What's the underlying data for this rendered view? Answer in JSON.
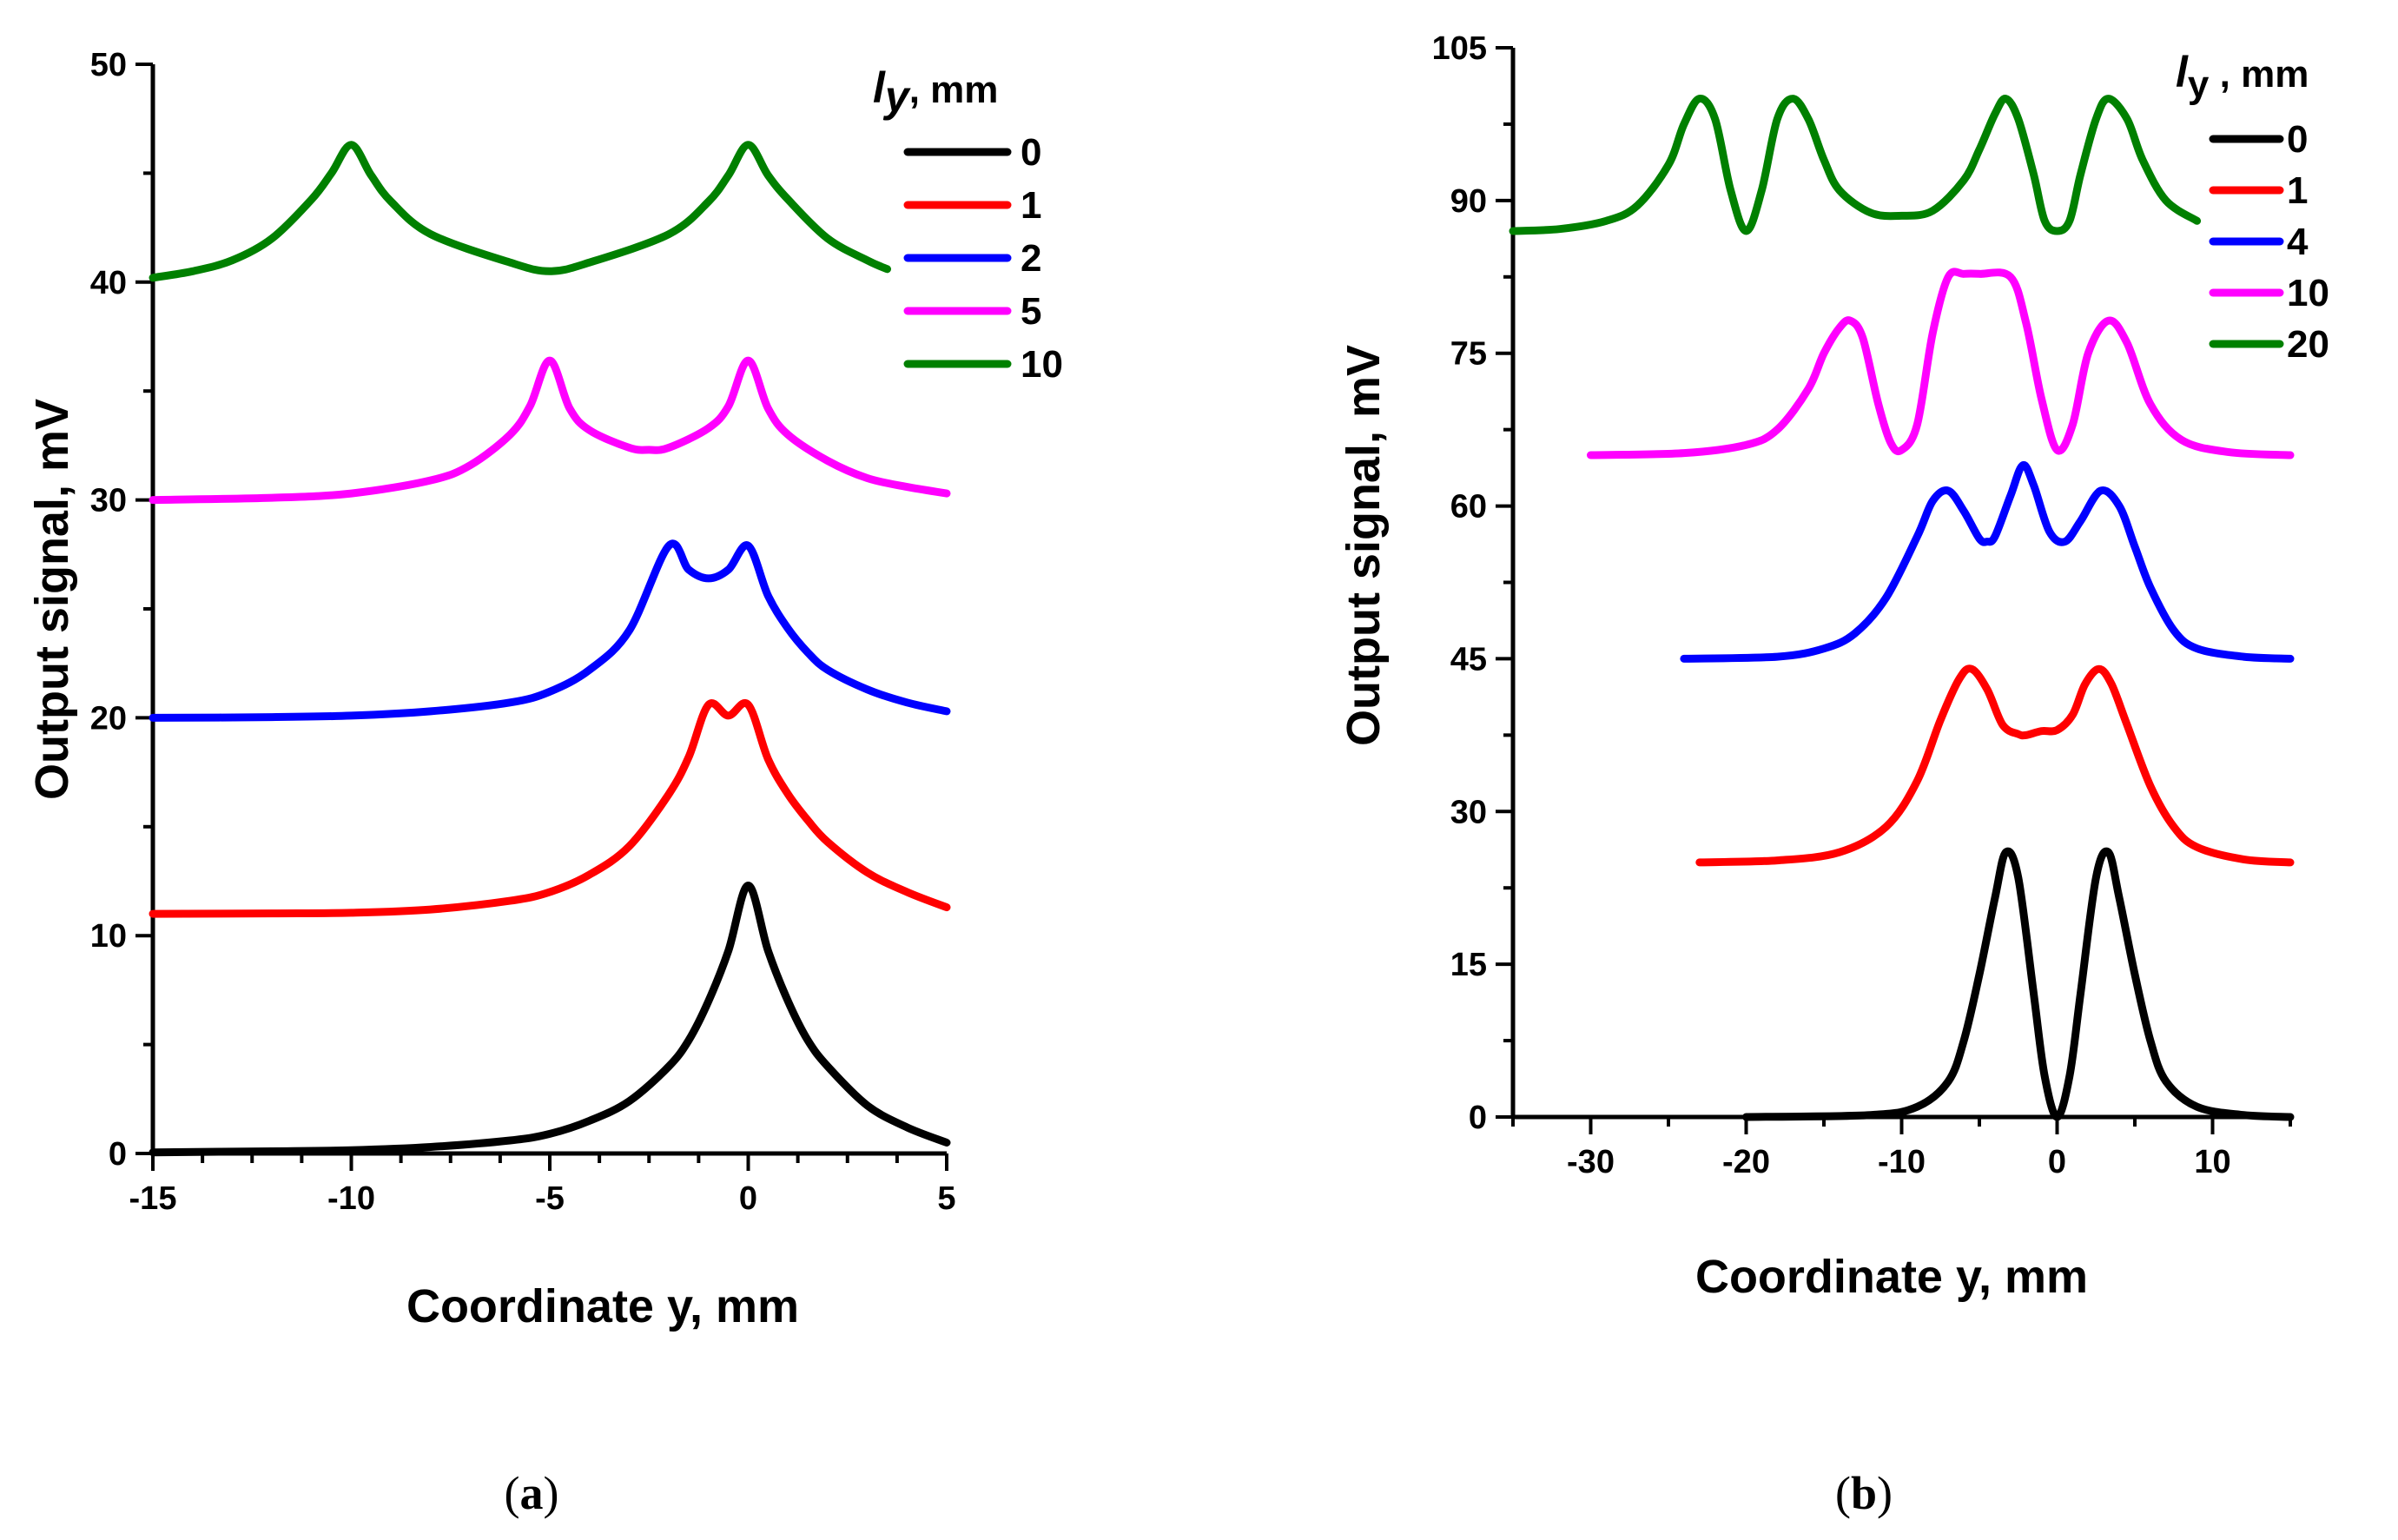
{
  "chart_data": [
    {
      "type": "line",
      "panel": "a",
      "panel_label_open": "(",
      "panel_label_letter": "a",
      "panel_label_close": ")",
      "xlabel": "Coordinate y, mm",
      "ylabel": "Output signal, mV",
      "xlim": [
        -15,
        5
      ],
      "ylim": [
        0,
        50
      ],
      "xticks": [
        -15,
        -10,
        -5,
        0,
        5
      ],
      "yticks": [
        0,
        10,
        20,
        30,
        40,
        50
      ],
      "legend_title_symbol": "l",
      "legend_title_sub": "y",
      "legend_title_unit": ", mm",
      "series": [
        {
          "name": "0",
          "color": "#000000",
          "x": [
            -15,
            -12,
            -10,
            -8,
            -6,
            -5,
            -4,
            -3,
            -2,
            -1.5,
            -1,
            -0.5,
            0,
            0.5,
            1,
            1.5,
            2,
            3,
            4,
            5
          ],
          "y": [
            0.05,
            0.1,
            0.15,
            0.3,
            0.6,
            0.9,
            1.5,
            2.4,
            4.0,
            5.2,
            7.0,
            9.3,
            12.3,
            9.3,
            7.0,
            5.2,
            4.0,
            2.2,
            1.2,
            0.5
          ]
        },
        {
          "name": "1",
          "color": "#ff0000",
          "x": [
            -15,
            -12,
            -10,
            -8,
            -6,
            -5,
            -4,
            -3,
            -2,
            -1.5,
            -1,
            -0.5,
            0,
            0.5,
            1,
            1.5,
            2,
            3,
            4,
            5
          ],
          "y": [
            11.0,
            11.02,
            11.05,
            11.2,
            11.6,
            12.0,
            12.8,
            14.1,
            16.5,
            18.2,
            20.6,
            20.1,
            20.6,
            18.1,
            16.5,
            15.3,
            14.3,
            12.9,
            12.0,
            11.3
          ]
        },
        {
          "name": "2",
          "color": "#0000ff",
          "x": [
            -15,
            -12,
            -10,
            -8,
            -6,
            -5,
            -4,
            -3,
            -2,
            -1.5,
            -1,
            -0.5,
            0,
            0.5,
            1,
            1.5,
            2,
            3,
            4,
            5
          ],
          "y": [
            20.0,
            20.03,
            20.1,
            20.3,
            20.7,
            21.2,
            22.2,
            24.0,
            27.9,
            26.8,
            26.4,
            26.8,
            27.9,
            25.6,
            24.1,
            23.0,
            22.2,
            21.3,
            20.7,
            20.3
          ]
        },
        {
          "name": "5",
          "color": "#ff00ff",
          "x": [
            -15,
            -12,
            -10,
            -8,
            -7,
            -6,
            -5.5,
            -5,
            -4.5,
            -4,
            -3,
            -2.5,
            -2,
            -1,
            -0.5,
            0,
            0.5,
            1,
            2,
            3,
            4,
            5
          ],
          "y": [
            30.0,
            30.1,
            30.3,
            30.9,
            31.6,
            33.0,
            34.3,
            36.4,
            34.2,
            33.2,
            32.4,
            32.3,
            32.4,
            33.3,
            34.3,
            36.4,
            34.2,
            33.0,
            31.8,
            31.0,
            30.6,
            30.3
          ]
        },
        {
          "name": "10",
          "color": "#008000",
          "x": [
            -15,
            -14,
            -13,
            -12,
            -11,
            -10.5,
            -10,
            -9.5,
            -9,
            -8,
            -6,
            -5,
            -4,
            -2,
            -1,
            -0.5,
            0,
            0.5,
            1,
            2,
            3,
            3.5
          ],
          "y": [
            40.2,
            40.5,
            41.0,
            42.0,
            43.8,
            45.0,
            46.3,
            44.9,
            43.7,
            42.2,
            40.9,
            40.5,
            40.9,
            42.2,
            43.7,
            44.9,
            46.3,
            44.9,
            43.8,
            42.0,
            41.0,
            40.6
          ]
        }
      ]
    },
    {
      "type": "line",
      "panel": "b",
      "panel_label_open": "(",
      "panel_label_letter": "b",
      "panel_label_close": ")",
      "xlabel": "Coordinate y, mm",
      "ylabel": "Output signal, mV",
      "xlim": [
        -35,
        15
      ],
      "ylim": [
        0,
        105
      ],
      "xticks": [
        -30,
        -20,
        -10,
        0,
        10
      ],
      "yticks": [
        0,
        15,
        30,
        45,
        60,
        75,
        90,
        105
      ],
      "legend_title_symbol": "l",
      "legend_title_sub": "y",
      "legend_title_unit": " , mm",
      "series": [
        {
          "name": "0",
          "color": "#000000",
          "x": [
            -20,
            -12,
            -9,
            -7,
            -6,
            -5,
            -4,
            -3.3,
            -2.5,
            -1.5,
            -0.8,
            0,
            0.8,
            1.5,
            2.5,
            3.3,
            4,
            5,
            6,
            7,
            9,
            12,
            15
          ],
          "y": [
            0,
            0.2,
            1.0,
            3.5,
            7.5,
            14.0,
            21.5,
            26.0,
            23.5,
            12.0,
            4.0,
            0,
            4.0,
            12.0,
            23.5,
            26.0,
            21.5,
            14.0,
            7.5,
            3.5,
            1.0,
            0.2,
            0
          ]
        },
        {
          "name": "1",
          "color": "#ff0000",
          "x": [
            -23,
            -18,
            -14,
            -11,
            -9,
            -7.5,
            -6.3,
            -5.5,
            -4.5,
            -3.5,
            -2.5,
            -2,
            -1,
            0,
            1,
            1.8,
            2.7,
            3.5,
            4.5,
            6,
            7.5,
            9,
            12,
            15
          ],
          "y": [
            25.0,
            25.2,
            26.0,
            28.5,
            33.0,
            39.0,
            43.0,
            44.0,
            42.0,
            38.5,
            37.6,
            37.5,
            37.9,
            38.0,
            39.5,
            42.5,
            44.0,
            42.5,
            38.5,
            32.5,
            28.5,
            26.5,
            25.3,
            25.0
          ]
        },
        {
          "name": "4",
          "color": "#0000ff",
          "x": [
            -24,
            -18,
            -15,
            -13,
            -11,
            -9,
            -8,
            -7,
            -6,
            -5,
            -4.5,
            -4,
            -3,
            -2.2,
            -1.5,
            -0.5,
            0.5,
            1.5,
            2.8,
            4,
            5,
            6,
            7.5,
            9,
            12,
            15
          ],
          "y": [
            45.0,
            45.2,
            46.0,
            47.5,
            51.0,
            57.0,
            60.5,
            61.5,
            59.5,
            56.8,
            56.5,
            57.0,
            61.0,
            64.0,
            62.0,
            57.5,
            56.5,
            58.5,
            61.5,
            60.0,
            56.0,
            52.0,
            47.8,
            46.0,
            45.2,
            45.0
          ]
        },
        {
          "name": "10",
          "color": "#ff00ff",
          "x": [
            -30,
            -24,
            -20,
            -18,
            -16,
            -15,
            -14,
            -13.3,
            -12.5,
            -11.5,
            -10.7,
            -10,
            -9,
            -8,
            -7,
            -6,
            -5,
            -3,
            -2,
            -1,
            0,
            1,
            2,
            3.3,
            4.5,
            6,
            8,
            11,
            15
          ],
          "y": [
            65.0,
            65.2,
            66.0,
            67.5,
            71.5,
            75.0,
            77.5,
            78.2,
            76.5,
            70.0,
            66.2,
            65.5,
            68.0,
            77.0,
            82.5,
            82.8,
            82.8,
            82.5,
            78.0,
            70.5,
            65.5,
            68.0,
            75.0,
            78.2,
            76.0,
            70.0,
            66.5,
            65.3,
            65.0
          ]
        },
        {
          "name": "20",
          "color": "#008000",
          "x": [
            -35,
            -32,
            -29,
            -27,
            -25,
            -24,
            -23,
            -22,
            -21,
            -20,
            -19,
            -18,
            -17,
            -16,
            -15,
            -14,
            -12,
            -10,
            -8,
            -6,
            -5,
            -4,
            -3.3,
            -2.5,
            -1.5,
            -0.8,
            0,
            0.8,
            1.5,
            2.5,
            3.3,
            4.5,
            5.5,
            7,
            9
          ],
          "y": [
            87.0,
            87.2,
            88.0,
            89.5,
            93.5,
            97.5,
            100.0,
            98.0,
            91.0,
            87.0,
            91.0,
            98.0,
            100.0,
            98.0,
            94.0,
            91.0,
            88.8,
            88.5,
            89.0,
            92.0,
            95.0,
            98.5,
            100.0,
            98.0,
            92.5,
            88.0,
            87.0,
            88.0,
            92.5,
            98.0,
            100.0,
            98.0,
            94.0,
            90.0,
            88.0
          ]
        }
      ]
    }
  ]
}
